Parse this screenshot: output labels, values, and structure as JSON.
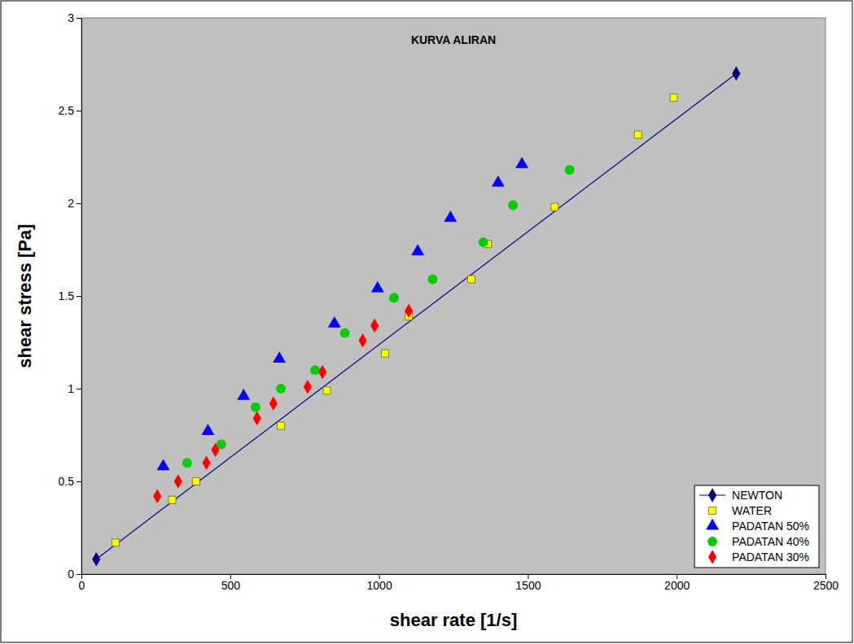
{
  "chart_data": {
    "type": "scatter",
    "title": "KURVA ALIRAN",
    "x_label": "shear rate [1/s]",
    "y_label": "shear stress [Pa]",
    "xlim": [
      0,
      2500
    ],
    "xticks": [
      0,
      500,
      1000,
      1500,
      2000,
      2500
    ],
    "ylim": [
      0,
      3
    ],
    "yticks": [
      0,
      0.5,
      1,
      1.5,
      2,
      2.5,
      3
    ],
    "grid": false,
    "legend": "bottom-right",
    "series": [
      {
        "name": "NEWTON",
        "type": "line",
        "color": "#000080",
        "marker": "diamond",
        "line_style": "solid",
        "x": [
          50,
          2200
        ],
        "values": [
          0.08,
          2.7
        ]
      },
      {
        "name": "WATER",
        "type": "scatter",
        "color": "#ffff00",
        "marker": "square",
        "x": [
          115,
          305,
          385,
          670,
          825,
          1020,
          1100,
          1310,
          1365,
          1590,
          1870,
          1990
        ],
        "values": [
          0.17,
          0.4,
          0.5,
          0.8,
          0.99,
          1.19,
          1.39,
          1.59,
          1.78,
          1.98,
          2.37,
          2.57
        ]
      },
      {
        "name": "PADATAN 50%",
        "type": "scatter",
        "color": "#0000ff",
        "marker": "triangle",
        "x": [
          275,
          425,
          545,
          665,
          850,
          995,
          1130,
          1240,
          1400,
          1480
        ],
        "values": [
          0.58,
          0.77,
          0.96,
          1.16,
          1.35,
          1.54,
          1.74,
          1.92,
          2.11,
          2.21
        ]
      },
      {
        "name": "PADATAN 40%",
        "type": "scatter",
        "color": "#00cc00",
        "marker": "circle",
        "x": [
          355,
          470,
          585,
          670,
          785,
          885,
          1050,
          1180,
          1350,
          1450,
          1640
        ],
        "values": [
          0.6,
          0.7,
          0.9,
          1.0,
          1.1,
          1.3,
          1.49,
          1.59,
          1.79,
          1.99,
          2.18
        ]
      },
      {
        "name": "PADATAN 30%",
        "type": "scatter",
        "color": "#ff0000",
        "marker": "diamond",
        "x": [
          255,
          325,
          420,
          450,
          590,
          645,
          760,
          810,
          945,
          985,
          1100
        ],
        "values": [
          0.42,
          0.5,
          0.6,
          0.67,
          0.84,
          0.92,
          1.01,
          1.09,
          1.26,
          1.34,
          1.42
        ]
      }
    ]
  }
}
